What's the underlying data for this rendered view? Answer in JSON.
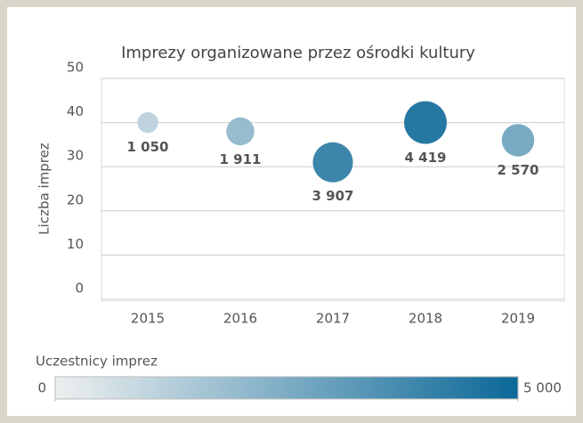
{
  "chart_data": {
    "type": "bubble",
    "title": "Imprezy organizowane przez ośrodki kultury",
    "y_label": "Liczba imprez",
    "categories": [
      "2015",
      "2016",
      "2017",
      "2018",
      "2019"
    ],
    "values": [
      40,
      38,
      31,
      40,
      36
    ],
    "sizes": [
      1050,
      1911,
      3907,
      4419,
      2570
    ],
    "value_labels": [
      "1 050",
      "1 911",
      "3 907",
      "4 419",
      "2 570"
    ],
    "ylim": [
      0,
      50
    ],
    "yticks": [
      0,
      10,
      20,
      30,
      40,
      50
    ],
    "grid": true,
    "colorbar": {
      "title": "Uczestnicy imprez",
      "lim": [
        0,
        5000
      ],
      "ticks": [
        0,
        {
          "value": 5000,
          "label": "5 000"
        }
      ],
      "colors": [
        "#eef0f0",
        "#0b6898"
      ]
    }
  }
}
